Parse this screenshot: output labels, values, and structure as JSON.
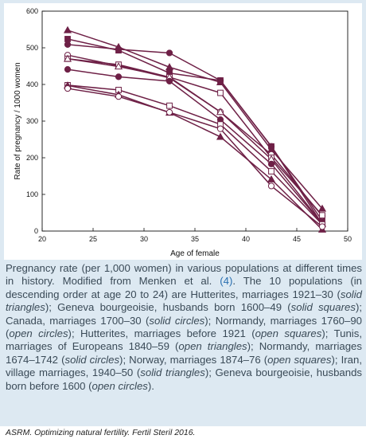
{
  "chart_data": {
    "type": "line",
    "xlabel": "Age of female",
    "ylabel": "Rate of pregnancy / 1000 women",
    "xlim": [
      20,
      50
    ],
    "ylim": [
      0,
      600
    ],
    "xticks": [
      "20",
      "25",
      "30",
      "35",
      "40",
      "45",
      "50"
    ],
    "yticks": [
      "0",
      "100",
      "200",
      "300",
      "400",
      "500",
      "600"
    ],
    "x": [
      22.5,
      27.5,
      32.5,
      37.5,
      42.5,
      47.5
    ],
    "line_color": "#6e2046",
    "series": [
      {
        "marker": "triangle-filled",
        "values": [
          548,
          502,
          447,
          406,
          222,
          61
        ]
      },
      {
        "marker": "square-filled",
        "values": [
          524,
          493,
          431,
          411,
          231,
          28
        ]
      },
      {
        "marker": "circle-filled",
        "values": [
          509,
          496,
          486,
          411,
          231,
          19
        ]
      },
      {
        "marker": "circle-open",
        "values": [
          480,
          451,
          418,
          325,
          209,
          41
        ]
      },
      {
        "marker": "square-open",
        "values": [
          470,
          454,
          420,
          377,
          200,
          43
        ]
      },
      {
        "marker": "triangle-open",
        "values": [
          470,
          449,
          420,
          325,
          196,
          20
        ]
      },
      {
        "marker": "circle-filled",
        "values": [
          441,
          421,
          409,
          304,
          183,
          19
        ]
      },
      {
        "marker": "square-open",
        "values": [
          398,
          385,
          342,
          291,
          163,
          18
        ]
      },
      {
        "marker": "triangle-filled",
        "values": [
          397,
          372,
          323,
          257,
          141,
          4
        ]
      },
      {
        "marker": "circle-open",
        "values": [
          389,
          367,
          324,
          279,
          123,
          12
        ]
      }
    ]
  },
  "caption": {
    "part1": "Pregnancy rate (per 1,000 women) in various populations at different times in history. Modified from Menken et al. ",
    "ref": "(4)",
    "part2": ". The 10 populations (in descending order at age 20 to 24) are Hutterites, marriages 1921–30 (",
    "m1": "solid triangles",
    "part3": "); Geneva bourgeoisie, husbands born 1600–49 (",
    "m2": "solid squares",
    "part4": "); Canada, marriages 1700–30 (",
    "m3": "solid circles",
    "part5": "); Normandy, marriages 1760–90 (",
    "m4": "open circles",
    "part6": "); Hutterites, marriages before 1921 (",
    "m5": "open squares",
    "part7": "); Tunis, marriages of Europeans 1840–59 (",
    "m6": "open triangles",
    "part8": "); Normandy, marriages 1674–1742 (",
    "m7": "solid circles",
    "part9": "); Norway, marriages 1874–76 (",
    "m8": "open squares",
    "part10": "); Iran, village marriages, 1940–50 (",
    "m9": "solid triangles",
    "part11": "); Geneva bourgeoisie, husbands born before 1600 (",
    "m10": "open circles",
    "part12": ")."
  },
  "source": "ASRM. Optimizing natural fertility. Fertil Steril 2016."
}
